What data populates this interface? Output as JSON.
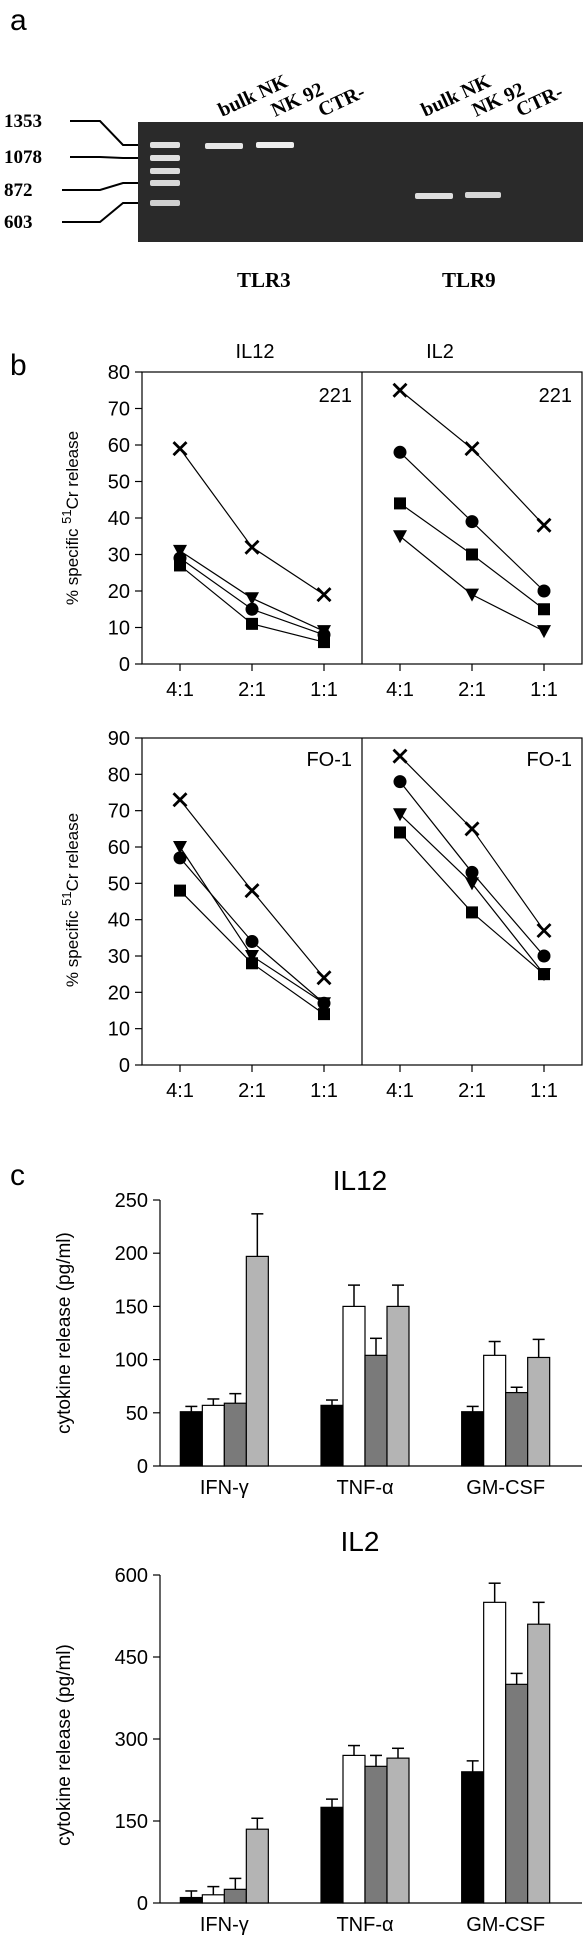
{
  "panel_letters": [
    "a",
    "b",
    "c"
  ],
  "colors": {
    "gel_background": "#2b2b2b",
    "band": "#e8e8e8",
    "black_bar": "#000000",
    "white_bar": "#ffffff",
    "dark_gray_bar": "#7a7a7a",
    "light_gray_bar": "#b4b4b4"
  },
  "gel": {
    "lane_labels": [
      "bulk NK",
      "NK 92",
      "CTR-",
      "bulk NK",
      "NK 92",
      "CTR-"
    ],
    "ladder_labels": [
      "1353",
      "1078",
      "872",
      "603"
    ],
    "group_labels": [
      "TLR3",
      "TLR9"
    ]
  },
  "chart_data": [
    {
      "type": "line",
      "panel": "b",
      "column_title": "IL12",
      "inset_label": "221",
      "categories": [
        "4:1",
        "2:1",
        "1:1"
      ],
      "ylabel_prefix": "% specific ",
      "ylabel_sup": "51",
      "ylabel_suffix": "Cr release",
      "ylim": [
        0,
        80
      ],
      "yticks": [
        0,
        10,
        20,
        30,
        40,
        50,
        60,
        70,
        80
      ],
      "series": [
        {
          "marker": "x",
          "values": [
            59,
            32,
            19
          ]
        },
        {
          "marker": "triangle-down",
          "values": [
            31,
            18,
            9
          ]
        },
        {
          "marker": "circle",
          "values": [
            29,
            15,
            8
          ]
        },
        {
          "marker": "square",
          "values": [
            27,
            11,
            6
          ]
        }
      ]
    },
    {
      "type": "line",
      "panel": "b",
      "column_title": "IL2",
      "inset_label": "221",
      "categories": [
        "4:1",
        "2:1",
        "1:1"
      ],
      "ylim": [
        0,
        80
      ],
      "series": [
        {
          "marker": "x",
          "values": [
            75,
            59,
            38
          ]
        },
        {
          "marker": "circle",
          "values": [
            58,
            39,
            20
          ]
        },
        {
          "marker": "square",
          "values": [
            44,
            30,
            15
          ]
        },
        {
          "marker": "triangle-down",
          "values": [
            35,
            19,
            9
          ]
        }
      ]
    },
    {
      "type": "line",
      "panel": "b",
      "inset_label": "FO-1",
      "categories": [
        "4:1",
        "2:1",
        "1:1"
      ],
      "ylabel_prefix": "% specific ",
      "ylabel_sup": "51",
      "ylabel_suffix": "Cr release",
      "ylim": [
        0,
        90
      ],
      "yticks": [
        0,
        10,
        20,
        30,
        40,
        50,
        60,
        70,
        80,
        90
      ],
      "series": [
        {
          "marker": "x",
          "values": [
            73,
            48,
            24
          ]
        },
        {
          "marker": "triangle-down",
          "values": [
            60,
            30,
            17
          ]
        },
        {
          "marker": "circle",
          "values": [
            57,
            34,
            17
          ]
        },
        {
          "marker": "square",
          "values": [
            48,
            28,
            14
          ]
        }
      ]
    },
    {
      "type": "line",
      "panel": "b",
      "inset_label": "FO-1",
      "categories": [
        "4:1",
        "2:1",
        "1:1"
      ],
      "ylim": [
        0,
        90
      ],
      "series": [
        {
          "marker": "x",
          "values": [
            85,
            65,
            37
          ]
        },
        {
          "marker": "circle",
          "values": [
            78,
            53,
            30
          ]
        },
        {
          "marker": "triangle-down",
          "values": [
            69,
            50,
            25
          ]
        },
        {
          "marker": "square",
          "values": [
            64,
            42,
            25
          ]
        }
      ]
    },
    {
      "type": "bar",
      "panel": "c",
      "title": "IL12",
      "ylabel": "cytokine release (pg/ml)",
      "categories": [
        "IFN-γ",
        "TNF-α",
        "GM-CSF"
      ],
      "ylim": [
        0,
        250
      ],
      "yticks": [
        0,
        50,
        100,
        150,
        200,
        250
      ],
      "series": [
        {
          "color": "#000000",
          "values": [
            51,
            57,
            51
          ],
          "errors": [
            5,
            5,
            5
          ]
        },
        {
          "color": "#ffffff",
          "values": [
            57,
            150,
            104
          ],
          "errors": [
            6,
            20,
            13
          ]
        },
        {
          "color": "#7a7a7a",
          "values": [
            59,
            104,
            69
          ],
          "errors": [
            9,
            16,
            5
          ]
        },
        {
          "color": "#b4b4b4",
          "values": [
            197,
            150,
            102
          ],
          "errors": [
            40,
            20,
            17
          ]
        }
      ]
    },
    {
      "type": "bar",
      "panel": "c",
      "title": "IL2",
      "ylabel": "cytokine release (pg/ml)",
      "categories": [
        "IFN-γ",
        "TNF-α",
        "GM-CSF"
      ],
      "ylim": [
        0,
        600
      ],
      "yticks": [
        0,
        150,
        300,
        450,
        600
      ],
      "series": [
        {
          "color": "#000000",
          "values": [
            10,
            175,
            240
          ],
          "errors": [
            12,
            15,
            20
          ]
        },
        {
          "color": "#ffffff",
          "values": [
            15,
            270,
            550
          ],
          "errors": [
            15,
            18,
            35
          ]
        },
        {
          "color": "#7a7a7a",
          "values": [
            25,
            250,
            400
          ],
          "errors": [
            20,
            20,
            20
          ]
        },
        {
          "color": "#b4b4b4",
          "values": [
            135,
            265,
            510
          ],
          "errors": [
            20,
            18,
            40
          ]
        }
      ]
    }
  ]
}
